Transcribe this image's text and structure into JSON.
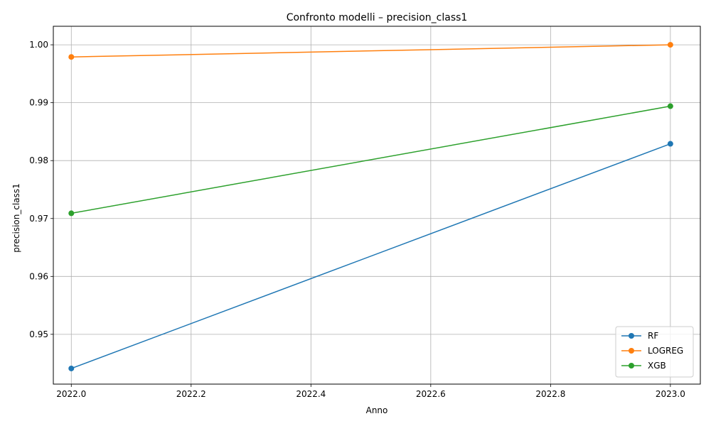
{
  "chart_data": {
    "type": "line",
    "title": "Confronto modelli – precision_class1",
    "xlabel": "Anno",
    "ylabel": "precision_class1",
    "x": [
      2022.0,
      2023.0
    ],
    "xlim": [
      2021.97,
      2023.05
    ],
    "ylim": [
      0.9414,
      1.0032
    ],
    "xticks": [
      "2022.0",
      "2022.2",
      "2022.4",
      "2022.6",
      "2022.8",
      "2023.0"
    ],
    "xtick_values": [
      2022.0,
      2022.2,
      2022.4,
      2022.6,
      2022.8,
      2023.0
    ],
    "yticks": [
      "0.95",
      "0.96",
      "0.97",
      "0.98",
      "0.99",
      "1.00"
    ],
    "ytick_values": [
      0.95,
      0.96,
      0.97,
      0.98,
      0.99,
      1.0
    ],
    "grid": true,
    "legend_position": "lower right",
    "series": [
      {
        "name": "RF",
        "color": "#1f77b4",
        "values": [
          0.9441,
          0.9829
        ],
        "marker": "circle"
      },
      {
        "name": "LOGREG",
        "color": "#ff7f0e",
        "values": [
          0.9979,
          1.0
        ],
        "marker": "circle"
      },
      {
        "name": "XGB",
        "color": "#2ca02c",
        "values": [
          0.9709,
          0.9894
        ],
        "marker": "circle"
      }
    ]
  }
}
